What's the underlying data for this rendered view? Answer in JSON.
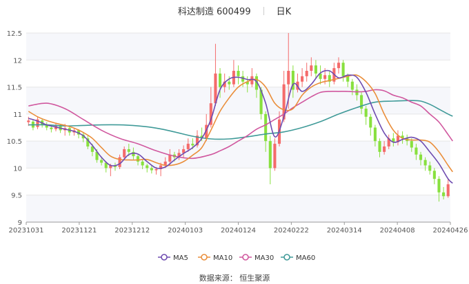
{
  "header": {
    "name_code": "科达制造 600499",
    "period": "日K"
  },
  "footer": {
    "source": "数据来源：  恒生聚源"
  },
  "chart_data": {
    "type": "candlestick",
    "ylim": [
      9,
      12.5
    ],
    "yticks": [
      "9",
      "9.5",
      "10",
      "10.5",
      "11",
      "11.5",
      "12",
      "12.5"
    ],
    "xticks": [
      "20231031",
      "20231121",
      "20231212",
      "20240103",
      "20240124",
      "20240222",
      "20240314",
      "20240408",
      "20240426"
    ],
    "colors": {
      "up": "#f46b6b",
      "down": "#88e03e",
      "ma5": "#6e4bb0",
      "ma10": "#ea8e3a",
      "ma30": "#d0579e",
      "ma60": "#3f9a98"
    },
    "legend": [
      {
        "name": "MA5",
        "color": "#6e4bb0"
      },
      {
        "name": "MA10",
        "color": "#ea8e3a"
      },
      {
        "name": "MA30",
        "color": "#d0579e"
      },
      {
        "name": "MA60",
        "color": "#3f9a98"
      }
    ],
    "candles": [
      [
        10.85,
        10.88,
        10.78,
        10.95
      ],
      [
        10.86,
        10.75,
        10.7,
        10.9
      ],
      [
        10.76,
        10.9,
        10.72,
        10.95
      ],
      [
        10.88,
        10.8,
        10.75,
        10.92
      ],
      [
        10.8,
        10.75,
        10.7,
        10.85
      ],
      [
        10.75,
        10.72,
        10.66,
        10.8
      ],
      [
        10.72,
        10.78,
        10.68,
        10.82
      ],
      [
        10.78,
        10.7,
        10.65,
        10.8
      ],
      [
        10.7,
        10.74,
        10.6,
        10.82
      ],
      [
        10.74,
        10.66,
        10.6,
        10.78
      ],
      [
        10.66,
        10.7,
        10.6,
        10.75
      ],
      [
        10.7,
        10.62,
        10.55,
        10.72
      ],
      [
        10.62,
        10.55,
        10.48,
        10.65
      ],
      [
        10.55,
        10.4,
        10.35,
        10.6
      ],
      [
        10.4,
        10.3,
        10.22,
        10.45
      ],
      [
        10.3,
        10.15,
        10.1,
        10.35
      ],
      [
        10.15,
        10.1,
        10.05,
        10.2
      ],
      [
        10.1,
        10.0,
        9.92,
        10.12
      ],
      [
        10.0,
        10.05,
        9.85,
        10.08
      ],
      [
        10.05,
        10.02,
        9.95,
        10.1
      ],
      [
        10.02,
        10.2,
        9.98,
        10.25
      ],
      [
        10.2,
        10.35,
        10.15,
        10.4
      ],
      [
        10.35,
        10.3,
        10.22,
        10.45
      ],
      [
        10.3,
        10.22,
        10.15,
        10.38
      ],
      [
        10.22,
        10.12,
        10.05,
        10.25
      ],
      [
        10.12,
        10.05,
        9.98,
        10.15
      ],
      [
        10.05,
        10.0,
        9.92,
        10.08
      ],
      [
        10.0,
        9.96,
        9.9,
        10.05
      ],
      [
        9.96,
        9.98,
        9.88,
        10.02
      ],
      [
        9.98,
        10.05,
        9.85,
        10.1
      ],
      [
        10.05,
        10.12,
        10.0,
        10.2
      ],
      [
        10.12,
        10.25,
        10.05,
        10.35
      ],
      [
        10.25,
        10.2,
        10.12,
        10.3
      ],
      [
        10.2,
        10.28,
        10.15,
        10.35
      ],
      [
        10.28,
        10.35,
        10.2,
        10.42
      ],
      [
        10.35,
        10.45,
        10.3,
        10.55
      ],
      [
        10.45,
        10.42,
        10.35,
        10.55
      ],
      [
        10.42,
        10.6,
        10.38,
        10.7
      ],
      [
        10.6,
        10.55,
        10.5,
        10.75
      ],
      [
        10.55,
        10.8,
        10.5,
        11.0
      ],
      [
        10.8,
        11.2,
        10.75,
        11.5
      ],
      [
        11.2,
        11.75,
        11.15,
        12.3
      ],
      [
        11.75,
        11.5,
        11.3,
        11.85
      ],
      [
        11.5,
        11.6,
        11.4,
        11.75
      ],
      [
        11.6,
        11.55,
        11.45,
        11.7
      ],
      [
        11.55,
        11.8,
        11.5,
        12.0
      ],
      [
        11.8,
        11.7,
        11.55,
        11.9
      ],
      [
        11.7,
        11.6,
        11.5,
        11.8
      ],
      [
        11.6,
        11.55,
        11.4,
        11.7
      ],
      [
        11.55,
        11.7,
        11.5,
        11.85
      ],
      [
        11.7,
        11.45,
        11.3,
        11.75
      ],
      [
        11.45,
        11.0,
        10.9,
        11.5
      ],
      [
        11.0,
        10.5,
        10.3,
        11.05
      ],
      [
        10.5,
        10.0,
        9.7,
        10.6
      ],
      [
        10.0,
        10.45,
        9.95,
        10.55
      ],
      [
        10.45,
        10.9,
        10.4,
        11.05
      ],
      [
        10.9,
        11.55,
        10.85,
        11.8
      ],
      [
        11.55,
        11.8,
        11.1,
        12.5
      ],
      [
        11.8,
        11.45,
        11.3,
        11.9
      ],
      [
        11.45,
        11.6,
        11.4,
        11.75
      ],
      [
        11.6,
        11.7,
        11.5,
        11.85
      ],
      [
        11.7,
        11.8,
        11.6,
        11.95
      ],
      [
        11.8,
        11.9,
        11.7,
        12.05
      ],
      [
        11.9,
        11.75,
        11.65,
        12.0
      ],
      [
        11.75,
        11.65,
        11.55,
        11.9
      ],
      [
        11.65,
        11.72,
        11.55,
        11.85
      ],
      [
        11.72,
        11.6,
        11.5,
        11.8
      ],
      [
        11.6,
        11.85,
        11.55,
        11.95
      ],
      [
        11.85,
        11.95,
        11.75,
        12.05
      ],
      [
        11.95,
        11.7,
        11.6,
        12.0
      ],
      [
        11.7,
        11.6,
        11.5,
        11.75
      ],
      [
        11.6,
        11.45,
        11.35,
        11.65
      ],
      [
        11.45,
        11.35,
        11.25,
        11.55
      ],
      [
        11.35,
        11.1,
        11.0,
        11.4
      ],
      [
        11.1,
        10.95,
        10.8,
        11.15
      ],
      [
        10.95,
        10.75,
        10.6,
        11.0
      ],
      [
        10.75,
        10.5,
        10.4,
        10.8
      ],
      [
        10.5,
        10.3,
        10.2,
        10.55
      ],
      [
        10.3,
        10.4,
        10.25,
        10.5
      ],
      [
        10.4,
        10.55,
        10.35,
        10.62
      ],
      [
        10.55,
        10.48,
        10.4,
        10.65
      ],
      [
        10.48,
        10.6,
        10.42,
        10.7
      ],
      [
        10.6,
        10.55,
        10.45,
        10.68
      ],
      [
        10.55,
        10.5,
        10.42,
        10.62
      ],
      [
        10.5,
        10.38,
        10.3,
        10.55
      ],
      [
        10.38,
        10.25,
        10.15,
        10.45
      ],
      [
        10.25,
        10.15,
        10.05,
        10.3
      ],
      [
        10.15,
        10.05,
        9.95,
        10.2
      ],
      [
        10.05,
        9.95,
        9.88,
        10.12
      ],
      [
        9.95,
        9.8,
        9.7,
        10.0
      ],
      [
        9.8,
        9.55,
        9.38,
        9.85
      ],
      [
        9.55,
        9.48,
        9.42,
        9.65
      ],
      [
        9.48,
        9.7,
        9.45,
        9.8
      ]
    ],
    "ma5": [
      [
        0,
        10.92
      ],
      [
        2,
        10.87
      ],
      [
        4,
        10.8
      ],
      [
        6,
        10.76
      ],
      [
        8,
        10.72
      ],
      [
        10,
        10.68
      ],
      [
        12,
        10.6
      ],
      [
        14,
        10.42
      ],
      [
        16,
        10.2
      ],
      [
        18,
        10.05
      ],
      [
        20,
        10.08
      ],
      [
        22,
        10.25
      ],
      [
        24,
        10.26
      ],
      [
        26,
        10.12
      ],
      [
        28,
        10.0
      ],
      [
        30,
        10.02
      ],
      [
        32,
        10.15
      ],
      [
        34,
        10.27
      ],
      [
        36,
        10.38
      ],
      [
        38,
        10.55
      ],
      [
        40,
        10.9
      ],
      [
        42,
        11.45
      ],
      [
        44,
        11.65
      ],
      [
        46,
        11.68
      ],
      [
        48,
        11.64
      ],
      [
        50,
        11.6
      ],
      [
        52,
        11.2
      ],
      [
        54,
        10.58
      ],
      [
        56,
        10.95
      ],
      [
        58,
        11.55
      ],
      [
        60,
        11.42
      ],
      [
        62,
        11.55
      ],
      [
        64,
        11.76
      ],
      [
        66,
        11.8
      ],
      [
        68,
        11.67
      ],
      [
        70,
        11.72
      ],
      [
        72,
        11.68
      ],
      [
        74,
        11.4
      ],
      [
        76,
        11.0
      ],
      [
        78,
        10.65
      ],
      [
        80,
        10.48
      ],
      [
        82,
        10.53
      ],
      [
        84,
        10.57
      ],
      [
        86,
        10.5
      ],
      [
        88,
        10.3
      ],
      [
        90,
        10.08
      ],
      [
        92,
        9.8
      ],
      [
        93,
        9.72
      ]
    ],
    "ma10": [
      [
        0,
        11.05
      ],
      [
        2,
        10.95
      ],
      [
        4,
        10.88
      ],
      [
        6,
        10.83
      ],
      [
        8,
        10.79
      ],
      [
        10,
        10.74
      ],
      [
        12,
        10.66
      ],
      [
        14,
        10.55
      ],
      [
        16,
        10.38
      ],
      [
        18,
        10.22
      ],
      [
        20,
        10.16
      ],
      [
        22,
        10.15
      ],
      [
        24,
        10.15
      ],
      [
        26,
        10.16
      ],
      [
        28,
        10.1
      ],
      [
        30,
        10.05
      ],
      [
        32,
        10.06
      ],
      [
        34,
        10.12
      ],
      [
        36,
        10.24
      ],
      [
        38,
        10.38
      ],
      [
        40,
        10.7
      ],
      [
        42,
        11.05
      ],
      [
        44,
        11.3
      ],
      [
        46,
        11.5
      ],
      [
        48,
        11.6
      ],
      [
        50,
        11.64
      ],
      [
        52,
        11.5
      ],
      [
        54,
        11.2
      ],
      [
        56,
        11.08
      ],
      [
        58,
        11.1
      ],
      [
        60,
        11.35
      ],
      [
        62,
        11.5
      ],
      [
        64,
        11.58
      ],
      [
        66,
        11.62
      ],
      [
        68,
        11.66
      ],
      [
        70,
        11.7
      ],
      [
        72,
        11.72
      ],
      [
        74,
        11.6
      ],
      [
        76,
        11.38
      ],
      [
        78,
        11.0
      ],
      [
        80,
        10.7
      ],
      [
        82,
        10.55
      ],
      [
        84,
        10.52
      ],
      [
        86,
        10.52
      ],
      [
        88,
        10.48
      ],
      [
        90,
        10.3
      ],
      [
        92,
        10.05
      ],
      [
        93,
        9.93
      ]
    ],
    "ma30": [
      [
        0,
        11.15
      ],
      [
        4,
        11.2
      ],
      [
        8,
        11.1
      ],
      [
        12,
        10.9
      ],
      [
        16,
        10.7
      ],
      [
        20,
        10.55
      ],
      [
        24,
        10.45
      ],
      [
        28,
        10.32
      ],
      [
        32,
        10.22
      ],
      [
        36,
        10.18
      ],
      [
        40,
        10.25
      ],
      [
        42,
        10.32
      ],
      [
        44,
        10.4
      ],
      [
        46,
        10.5
      ],
      [
        48,
        10.6
      ],
      [
        50,
        10.72
      ],
      [
        52,
        10.8
      ],
      [
        54,
        10.9
      ],
      [
        56,
        11.0
      ],
      [
        58,
        11.12
      ],
      [
        60,
        11.22
      ],
      [
        62,
        11.32
      ],
      [
        64,
        11.4
      ],
      [
        66,
        11.42
      ],
      [
        68,
        11.42
      ],
      [
        70,
        11.42
      ],
      [
        72,
        11.41
      ],
      [
        74,
        11.42
      ],
      [
        76,
        11.45
      ],
      [
        78,
        11.43
      ],
      [
        80,
        11.35
      ],
      [
        82,
        11.3
      ],
      [
        84,
        11.22
      ],
      [
        86,
        11.15
      ],
      [
        88,
        11.0
      ],
      [
        90,
        10.85
      ],
      [
        92,
        10.62
      ],
      [
        93,
        10.5
      ]
    ],
    "ma60": [
      [
        0,
        10.8
      ],
      [
        4,
        10.8
      ],
      [
        8,
        10.78
      ],
      [
        12,
        10.79
      ],
      [
        16,
        10.8
      ],
      [
        20,
        10.8
      ],
      [
        24,
        10.78
      ],
      [
        28,
        10.74
      ],
      [
        32,
        10.67
      ],
      [
        36,
        10.59
      ],
      [
        40,
        10.54
      ],
      [
        44,
        10.54
      ],
      [
        48,
        10.58
      ],
      [
        52,
        10.63
      ],
      [
        56,
        10.67
      ],
      [
        60,
        10.75
      ],
      [
        64,
        10.86
      ],
      [
        68,
        11.0
      ],
      [
        72,
        11.12
      ],
      [
        76,
        11.22
      ],
      [
        80,
        11.24
      ],
      [
        84,
        11.25
      ],
      [
        86,
        11.24
      ],
      [
        88,
        11.18
      ],
      [
        90,
        11.09
      ],
      [
        92,
        11.0
      ],
      [
        93,
        10.96
      ]
    ]
  }
}
